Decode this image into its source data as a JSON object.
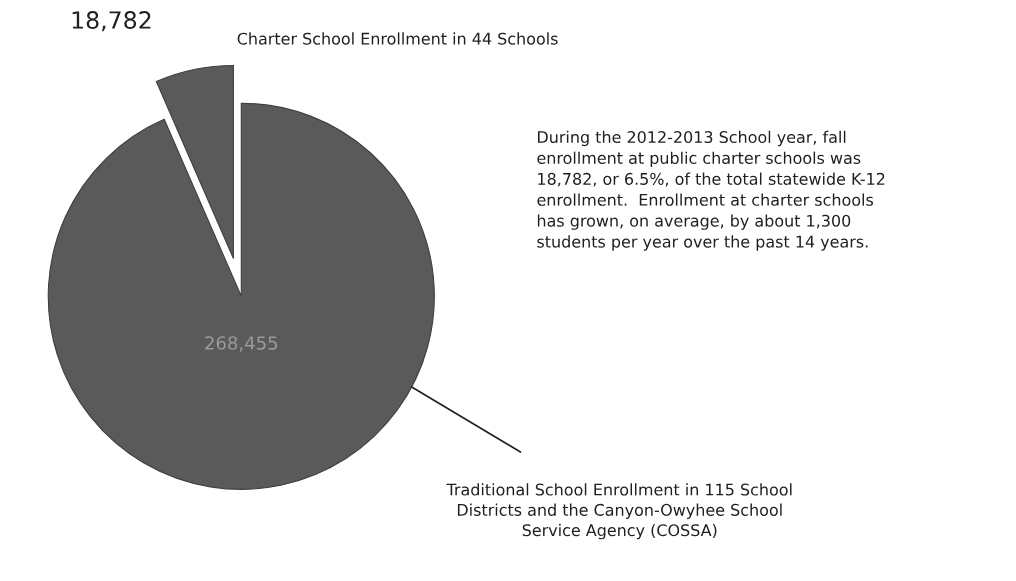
{
  "chart_data": {
    "type": "pie",
    "categories": [
      "Charter School Enrollment in 44 Schools",
      "Traditional School Enrollment in 115 School\nDistricts and the Canyon-Owyhee School\nService Agency (COSSA)"
    ],
    "values": [
      18782,
      268455
    ],
    "value_labels": [
      "18,782",
      "268,455"
    ],
    "colors": [
      "#5a5a5a",
      "#5a5a5a"
    ],
    "annotations": [
      "During the 2012-2013 School year, fall\nenrollment at public charter schools was\n18,782, or 6.5%, of the total statewide K-12\nenrollment.  Enrollment at charter schools\nhas grown, on average, by about 1,300\nstudents per year over the past 14 years."
    ]
  }
}
